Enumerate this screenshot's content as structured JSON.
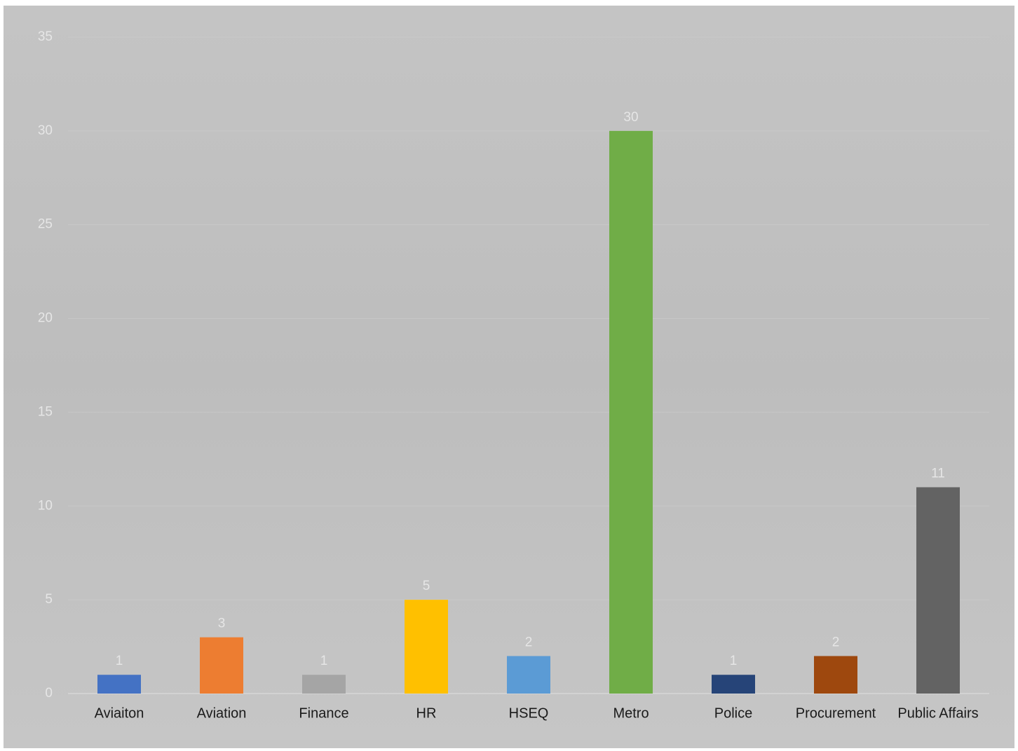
{
  "chart_data": {
    "type": "bar",
    "categories": [
      "Aviaiton",
      "Aviation",
      "Finance",
      "HR",
      "HSEQ",
      "Metro",
      "Police",
      "Procurement",
      "Public Affairs"
    ],
    "values": [
      1,
      3,
      1,
      5,
      2,
      30,
      1,
      2,
      11
    ],
    "colors": [
      "#4472c4",
      "#ed7d31",
      "#a5a5a5",
      "#ffc000",
      "#5b9bd5",
      "#70ad47",
      "#264478",
      "#9e480e",
      "#636363"
    ],
    "ylim": [
      0,
      35
    ],
    "yticks": [
      0,
      5,
      10,
      15,
      20,
      25,
      30,
      35
    ],
    "grid": true
  }
}
